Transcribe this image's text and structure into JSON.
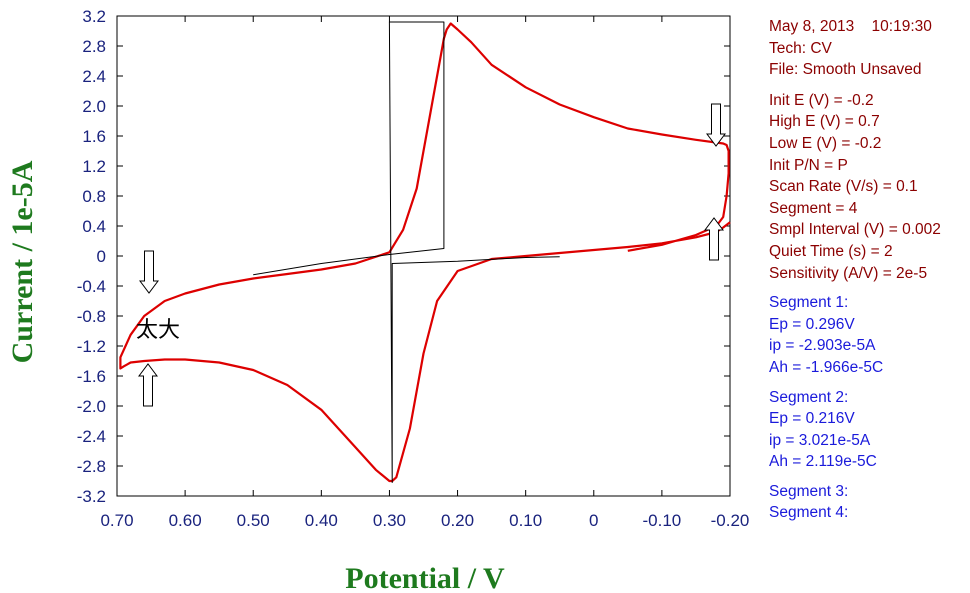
{
  "chart_data": {
    "type": "line",
    "title": "",
    "xlabel": "Potential / V",
    "ylabel": "Current / 1e-5A",
    "xlim": [
      0.7,
      -0.2
    ],
    "ylim": [
      -3.2,
      3.2
    ],
    "x_reversed": true,
    "xticks": [
      "0.70",
      "0.60",
      "0.50",
      "0.40",
      "0.30",
      "0.20",
      "0.10",
      "0",
      "-0.10",
      "-0.20"
    ],
    "yticks": [
      "3.2",
      "2.8",
      "2.4",
      "2.0",
      "1.6",
      "1.2",
      "0.8",
      "0.4",
      "0",
      "-0.4",
      "-0.8",
      "-1.2",
      "-1.6",
      "-2.0",
      "-2.4",
      "-2.8",
      "-3.2"
    ],
    "grid": false,
    "series": [
      {
        "name": "",
        "color": "#dd0000",
        "x": [
          -0.05,
          -0.1,
          -0.15,
          -0.18,
          -0.19,
          -0.195,
          -0.198,
          -0.198,
          -0.195,
          -0.19,
          -0.15,
          -0.1,
          -0.05,
          0.0,
          0.05,
          0.1,
          0.15,
          0.18,
          0.2,
          0.21,
          0.216,
          0.22,
          0.24,
          0.26,
          0.28,
          0.3,
          0.35,
          0.4,
          0.45,
          0.5,
          0.55,
          0.6,
          0.63,
          0.66,
          0.68,
          0.695,
          0.695,
          0.69,
          0.68,
          0.66,
          0.63,
          0.6,
          0.55,
          0.5,
          0.45,
          0.4,
          0.35,
          0.32,
          0.3,
          0.296,
          0.29,
          0.27,
          0.25,
          0.23,
          0.2,
          0.15,
          0.1,
          0.05,
          0.0,
          -0.05,
          -0.1,
          -0.15,
          -0.18,
          -0.19,
          -0.2
        ],
        "y": [
          0.07,
          0.15,
          0.28,
          0.4,
          0.52,
          0.8,
          1.1,
          1.4,
          1.48,
          1.5,
          1.55,
          1.62,
          1.7,
          1.85,
          2.02,
          2.25,
          2.55,
          2.85,
          3.02,
          3.1,
          3.02,
          2.9,
          1.9,
          0.9,
          0.35,
          0.05,
          -0.1,
          -0.18,
          -0.24,
          -0.3,
          -0.38,
          -0.5,
          -0.6,
          -0.8,
          -1.05,
          -1.35,
          -1.5,
          -1.47,
          -1.42,
          -1.4,
          -1.38,
          -1.38,
          -1.42,
          -1.52,
          -1.72,
          -2.05,
          -2.55,
          -2.85,
          -3.0,
          -3.0,
          -2.95,
          -2.3,
          -1.3,
          -0.6,
          -0.2,
          -0.04,
          0.0,
          0.04,
          0.08,
          0.12,
          0.17,
          0.25,
          0.32,
          0.38,
          0.45
        ]
      },
      {
        "name": "",
        "color": "#000000",
        "x": [
          0.5,
          0.4,
          0.3,
          0.22,
          0.22,
          0.3,
          0.296,
          0.296,
          0.2,
          0.1,
          0.05
        ],
        "y": [
          -0.25,
          -0.1,
          0.02,
          0.1,
          3.12,
          3.12,
          -3.02,
          -0.1,
          -0.07,
          -0.02,
          -0.01
        ]
      }
    ],
    "annotations": {
      "cjk_label": "太大"
    }
  },
  "info": {
    "date": "May 8, 2013",
    "time": "10:19:30",
    "tech": "Tech: CV",
    "file": "File: Smooth Unsaved",
    "params": [
      "Init E (V) = -0.2",
      "High E (V) = 0.7",
      "Low E (V) = -0.2",
      "Init P/N = P",
      "Scan Rate (V/s) = 0.1",
      "Segment = 4",
      "Smpl Interval (V) = 0.002",
      "Quiet Time (s) = 2",
      "Sensitivity (A/V) = 2e-5"
    ],
    "segments": [
      {
        "title": "Segment 1:",
        "ep": "Ep = 0.296V",
        "ip": "ip = -2.903e-5A",
        "ah": "Ah = -1.966e-5C"
      },
      {
        "title": "Segment 2:",
        "ep": "Ep = 0.216V",
        "ip": "ip = 3.021e-5A",
        "ah": "Ah = 2.119e-5C"
      }
    ],
    "seg3": "Segment 3:",
    "seg4": "Segment 4:",
    "colors": {
      "params": "#8b0000",
      "segments": "#1a1adb",
      "axis_title": "#1e7a1e",
      "ticks": "#1a237e",
      "curve": "#dd0000"
    }
  }
}
